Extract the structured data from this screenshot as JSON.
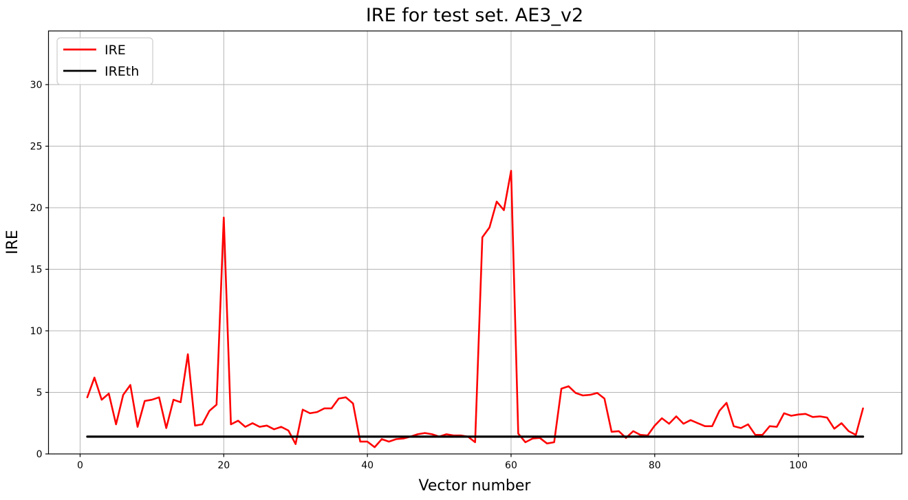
{
  "figure": {
    "background": "#ffffff",
    "grid_color": "#b4b4b4",
    "spine_color": "#000000"
  },
  "chart_data": {
    "type": "line",
    "title": "IRE for test set. AE3_v2",
    "xlabel": "Vector number",
    "ylabel": "IRE",
    "xlim": [
      -4.4,
      114.4
    ],
    "ylim": [
      0,
      34.36
    ],
    "xticks": [
      0,
      20,
      40,
      60,
      80,
      100
    ],
    "yticks": [
      0,
      5,
      10,
      15,
      20,
      25,
      30
    ],
    "grid": true,
    "legend_position": "upper-left",
    "series": [
      {
        "name": "IRE",
        "color": "#ff0000",
        "line_width": 2.6,
        "x_start": 1,
        "x_step": 1,
        "values": [
          4.6,
          6.2,
          4.4,
          4.9,
          2.4,
          4.8,
          5.6,
          2.2,
          4.3,
          4.4,
          4.6,
          2.1,
          4.4,
          4.2,
          8.1,
          2.3,
          2.4,
          3.5,
          4.0,
          19.2,
          2.4,
          2.7,
          2.2,
          2.5,
          2.2,
          2.3,
          2.0,
          2.2,
          1.9,
          0.8,
          3.6,
          3.3,
          3.4,
          3.7,
          3.7,
          4.5,
          4.6,
          4.1,
          1.0,
          1.0,
          0.55,
          1.2,
          1.0,
          1.2,
          1.25,
          1.4,
          1.6,
          1.7,
          1.6,
          1.4,
          1.6,
          1.5,
          1.5,
          1.4,
          0.95,
          17.6,
          18.4,
          20.5,
          19.8,
          23.0,
          1.65,
          0.95,
          1.25,
          1.3,
          0.85,
          0.95,
          5.3,
          5.5,
          4.95,
          4.75,
          4.8,
          4.95,
          4.5,
          1.8,
          1.85,
          1.3,
          1.85,
          1.55,
          1.5,
          2.3,
          2.9,
          2.45,
          3.05,
          2.45,
          2.75,
          2.5,
          2.25,
          2.25,
          3.5,
          4.15,
          2.25,
          2.1,
          2.4,
          1.55,
          1.55,
          2.25,
          2.2,
          3.3,
          3.1,
          3.2,
          3.25,
          3.0,
          3.05,
          2.95,
          2.05,
          2.5,
          1.85,
          1.55,
          3.7
        ]
      },
      {
        "name": "IREth",
        "color": "#000000",
        "line_width": 3.2,
        "x": [
          1,
          109
        ],
        "values": [
          1.4,
          1.4
        ]
      }
    ]
  }
}
